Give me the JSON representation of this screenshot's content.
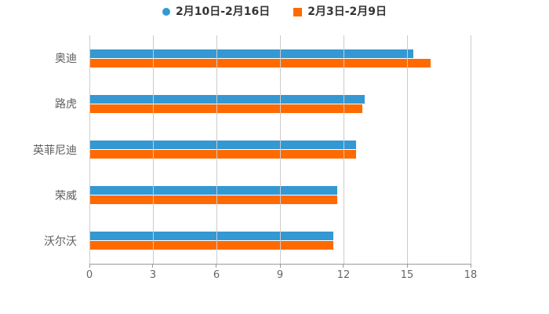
{
  "chart_data": {
    "type": "bar",
    "orientation": "horizontal",
    "title": "",
    "xlabel": "",
    "ylabel": "",
    "categories": [
      "奥迪",
      "路虎",
      "英菲尼迪",
      "荣威",
      "沃尔沃"
    ],
    "series": [
      {
        "name": "2月10日-2月16日",
        "color": "#3498d3",
        "marker": "circle",
        "values": [
          15.3,
          13.0,
          12.6,
          11.7,
          11.5
        ]
      },
      {
        "name": "2月3日-2月9日",
        "color": "#ff6a00",
        "marker": "square",
        "values": [
          16.1,
          12.9,
          12.6,
          11.7,
          11.5
        ]
      }
    ],
    "xlim": [
      0,
      18
    ],
    "xticks": [
      0,
      3,
      6,
      9,
      12,
      15,
      18
    ],
    "grid": "vertical",
    "legend_position": "top",
    "colors": {
      "gridline": "#cccccc",
      "axis_line": "#999999",
      "tick_label": "#666666",
      "category_label": "#5e5e5e",
      "legend_text": "#333333",
      "background": "#ffffff"
    }
  }
}
